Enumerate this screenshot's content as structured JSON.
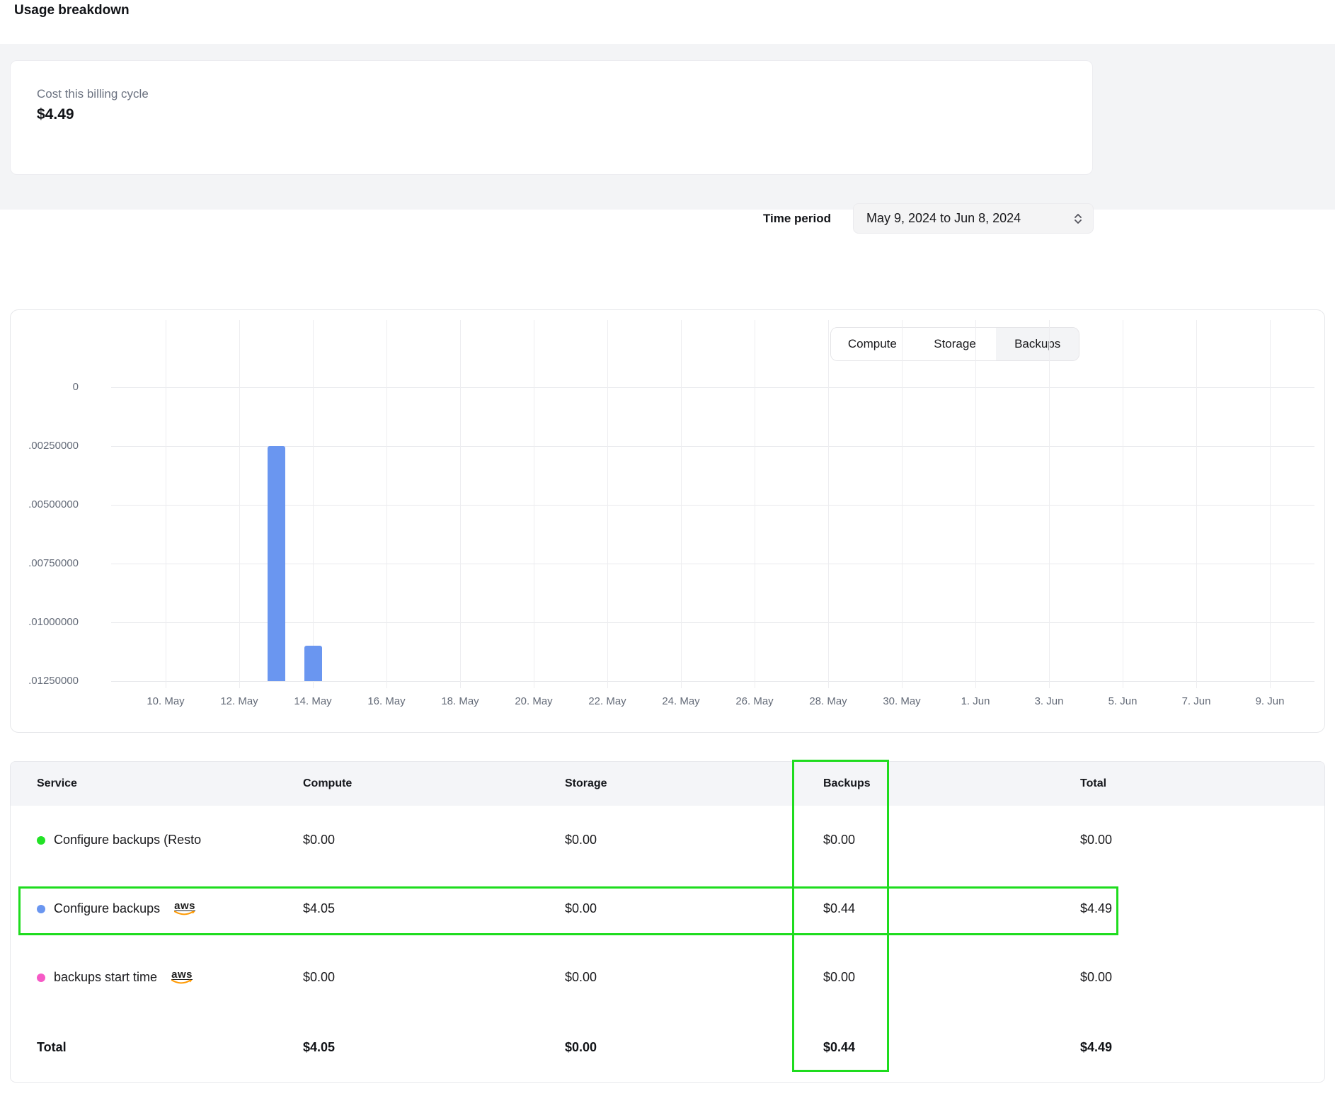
{
  "page": {
    "title": "Usage breakdown"
  },
  "summary_card": {
    "label": "Cost this billing cycle",
    "value": "$4.49"
  },
  "time_period": {
    "label": "Time period",
    "value": "May 9, 2024 to Jun 8, 2024"
  },
  "tabs": {
    "items": [
      "Compute",
      "Storage",
      "Backups"
    ],
    "active": "Backups"
  },
  "chart_data": {
    "type": "bar",
    "series_selected": "Backups",
    "x_range": [
      "May 9, 2024",
      "Jun 8, 2024"
    ],
    "x_ticks": [
      "10. May",
      "12. May",
      "14. May",
      "16. May",
      "18. May",
      "20. May",
      "22. May",
      "24. May",
      "26. May",
      "28. May",
      "30. May",
      "1. Jun",
      "3. Jun",
      "5. Jun",
      "7. Jun",
      "9. Jun"
    ],
    "y_ticks": [
      ".01250000",
      ".01000000",
      ".00750000",
      ".00500000",
      ".00250000",
      "0"
    ],
    "ylim": [
      0,
      0.0125
    ],
    "bars": [
      {
        "date": "13. May",
        "day_offset_from_first_tick": 3,
        "value": 0.01
      },
      {
        "date": "14. May",
        "day_offset_from_first_tick": 4,
        "value": 0.0015
      }
    ],
    "other_days_value": 0,
    "bar_color": "#6a96f0",
    "grid": true,
    "legend": "none"
  },
  "table": {
    "headers": [
      "Service",
      "Compute",
      "Storage",
      "Backups",
      "Total"
    ],
    "rows": [
      {
        "service": "Configure backups (Resto",
        "dot_color": "#22e226",
        "aws_badge": false,
        "compute": "$0.00",
        "storage": "$0.00",
        "backups": "$0.00",
        "total": "$0.00"
      },
      {
        "service": "Configure backups",
        "dot_color": "#6a96f0",
        "aws_badge": true,
        "compute": "$4.05",
        "storage": "$0.00",
        "backups": "$0.44",
        "total": "$4.49"
      },
      {
        "service": "backups start time",
        "dot_color": "#f65ac6",
        "aws_badge": true,
        "compute": "$0.00",
        "storage": "$0.00",
        "backups": "$0.00",
        "total": "$0.00"
      }
    ],
    "total_row": {
      "label": "Total",
      "compute": "$4.05",
      "storage": "$0.00",
      "backups": "$0.44",
      "total": "$4.49"
    }
  },
  "aws_logo_text": "aws",
  "annotation_color": "#1edc1e",
  "colors": {
    "bar_blue": "#6a96f0",
    "dot_green": "#22e226",
    "dot_pink": "#f65ac6",
    "aws_orange": "#ff9900"
  }
}
